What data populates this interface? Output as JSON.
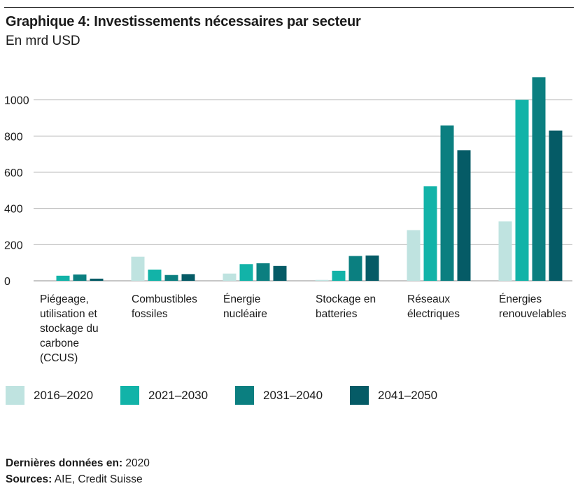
{
  "title": "Graphique 4: Investissements nécessaires par secteur",
  "subtitle": "En mrd USD",
  "chart_data": {
    "type": "bar",
    "ylim": [
      0,
      1130
    ],
    "yticks": [
      0,
      200,
      400,
      600,
      800,
      1000
    ],
    "grid": true,
    "legend_position": "bottom",
    "categories": [
      [
        "Piégeage,",
        "utilisation et",
        "stockage du",
        "carbone",
        "(CCUS)"
      ],
      [
        "Combustibles",
        "fossiles"
      ],
      [
        "Énergie",
        "nucléaire"
      ],
      [
        "Stockage en",
        "batteries"
      ],
      [
        "Réseaux",
        "électriques"
      ],
      [
        "Énergies",
        "renouvelables"
      ]
    ],
    "series": [
      {
        "name": "2016–2020",
        "color": "#bfe3e0",
        "values": [
          0,
          133,
          40,
          5,
          280,
          328
        ]
      },
      {
        "name": "2021–2030",
        "color": "#12b3a8",
        "values": [
          28,
          62,
          92,
          55,
          522,
          1000
        ]
      },
      {
        "name": "2031–2040",
        "color": "#0b7f80",
        "values": [
          35,
          32,
          97,
          137,
          858,
          1125
        ]
      },
      {
        "name": "2041–2050",
        "color": "#055b66",
        "values": [
          12,
          37,
          82,
          140,
          722,
          830
        ]
      }
    ]
  },
  "footer": {
    "latest_label": "Dernières données en:",
    "latest_value": "2020",
    "sources_label": "Sources:",
    "sources_value": "AIE, Credit Suisse"
  }
}
